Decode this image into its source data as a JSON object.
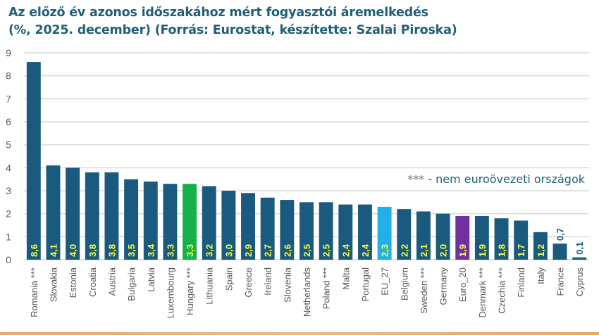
{
  "title_lines": [
    "Az előző év azonos időszakához mért fogyasztói áremelkedés",
    "(%, 2025. december) (Forrás: Eurostat, készítette: Szalai Piroska)"
  ],
  "note": {
    "stars": "***",
    "text": " - nem euroövezeti országok"
  },
  "colors": {
    "default": "#1a5a7e",
    "hungary": "#16b04c",
    "eu27": "#22b0e8",
    "euro20": "#7030a0",
    "label": "#ffff3a",
    "title": "#1f5f7a"
  },
  "chart_data": {
    "type": "bar",
    "title": "Az előző év azonos időszakához mért fogyasztói áremelkedés (%, 2025. december) (Forrás: Eurostat, készítette: Szalai Piroska)",
    "xlabel": "",
    "ylabel": "",
    "ylim": [
      0,
      9
    ],
    "yticks": [
      0,
      1,
      2,
      3,
      4,
      5,
      6,
      7,
      8,
      9
    ],
    "grid": true,
    "categories": [
      "Romania ***",
      "Slovakia",
      "Estonia",
      "Croatia",
      "Austria",
      "Bulgaria",
      "Latvia",
      "Luxembourg",
      "Hungary ***",
      "Lithuania",
      "Spain",
      "Greece",
      "Ireland",
      "Slovenia",
      "Netherlands",
      "Poland ***",
      "Malta",
      "Portugal",
      "EU_27",
      "Belgium",
      "Sweden ***",
      "Germany",
      "Euro_20",
      "Denmark ***",
      "Czechia ***",
      "Finland",
      "Italy",
      "France",
      "Cyprus"
    ],
    "values": [
      8.6,
      4.1,
      4.0,
      3.8,
      3.8,
      3.5,
      3.4,
      3.3,
      3.3,
      3.2,
      3.0,
      2.9,
      2.7,
      2.6,
      2.5,
      2.5,
      2.4,
      2.4,
      2.3,
      2.2,
      2.1,
      2.0,
      1.9,
      1.9,
      1.8,
      1.7,
      1.2,
      0.7,
      0.1
    ],
    "value_labels": [
      "8,6",
      "4,1",
      "4,0",
      "3,8",
      "3,8",
      "3,5",
      "3,4",
      "3,3",
      "3,3",
      "3,2",
      "3,0",
      "2,9",
      "2,7",
      "2,6",
      "2,5",
      "2,5",
      "2,4",
      "2,4",
      "2,3",
      "2,2",
      "2,1",
      "2,0",
      "1,9",
      "1,9",
      "1,8",
      "1,7",
      "1,2",
      "0,7",
      "0,1"
    ],
    "highlight": {
      "Hungary ***": "hungary",
      "EU_27": "eu27",
      "Euro_20": "euro20"
    }
  }
}
